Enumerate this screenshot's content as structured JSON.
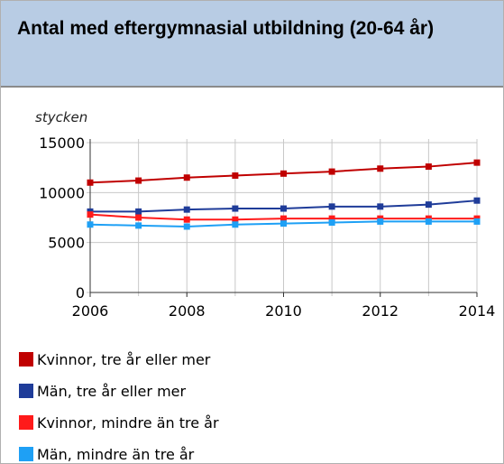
{
  "chart_data": {
    "type": "line",
    "title": "Antal med eftergymnasial utbildning (20-64 år)",
    "y_label": "stycken",
    "x": [
      2006,
      2007,
      2008,
      2009,
      2010,
      2011,
      2012,
      2013,
      2014
    ],
    "xlim": [
      2006,
      2014
    ],
    "xticks": [
      2006,
      2008,
      2010,
      2012,
      2014
    ],
    "ylim": [
      0,
      15000
    ],
    "yticks": [
      0,
      5000,
      10000,
      15000
    ],
    "grid": true,
    "series": [
      {
        "name": "Kvinnor, tre år eller mer",
        "color": "#c00000",
        "values": [
          11000,
          11200,
          11500,
          11700,
          11900,
          12100,
          12400,
          12600,
          13000
        ]
      },
      {
        "name": "Män, tre år eller mer",
        "color": "#1f3c99",
        "values": [
          8100,
          8100,
          8300,
          8400,
          8400,
          8600,
          8600,
          8800,
          9200
        ]
      },
      {
        "name": "Kvinnor, mindre än tre år",
        "color": "#ff1a1a",
        "values": [
          7800,
          7500,
          7300,
          7300,
          7400,
          7400,
          7400,
          7400,
          7400
        ]
      },
      {
        "name": "Män, mindre än tre år",
        "color": "#1ea0f5",
        "values": [
          6800,
          6700,
          6600,
          6800,
          6900,
          7000,
          7100,
          7100,
          7100
        ]
      }
    ]
  }
}
